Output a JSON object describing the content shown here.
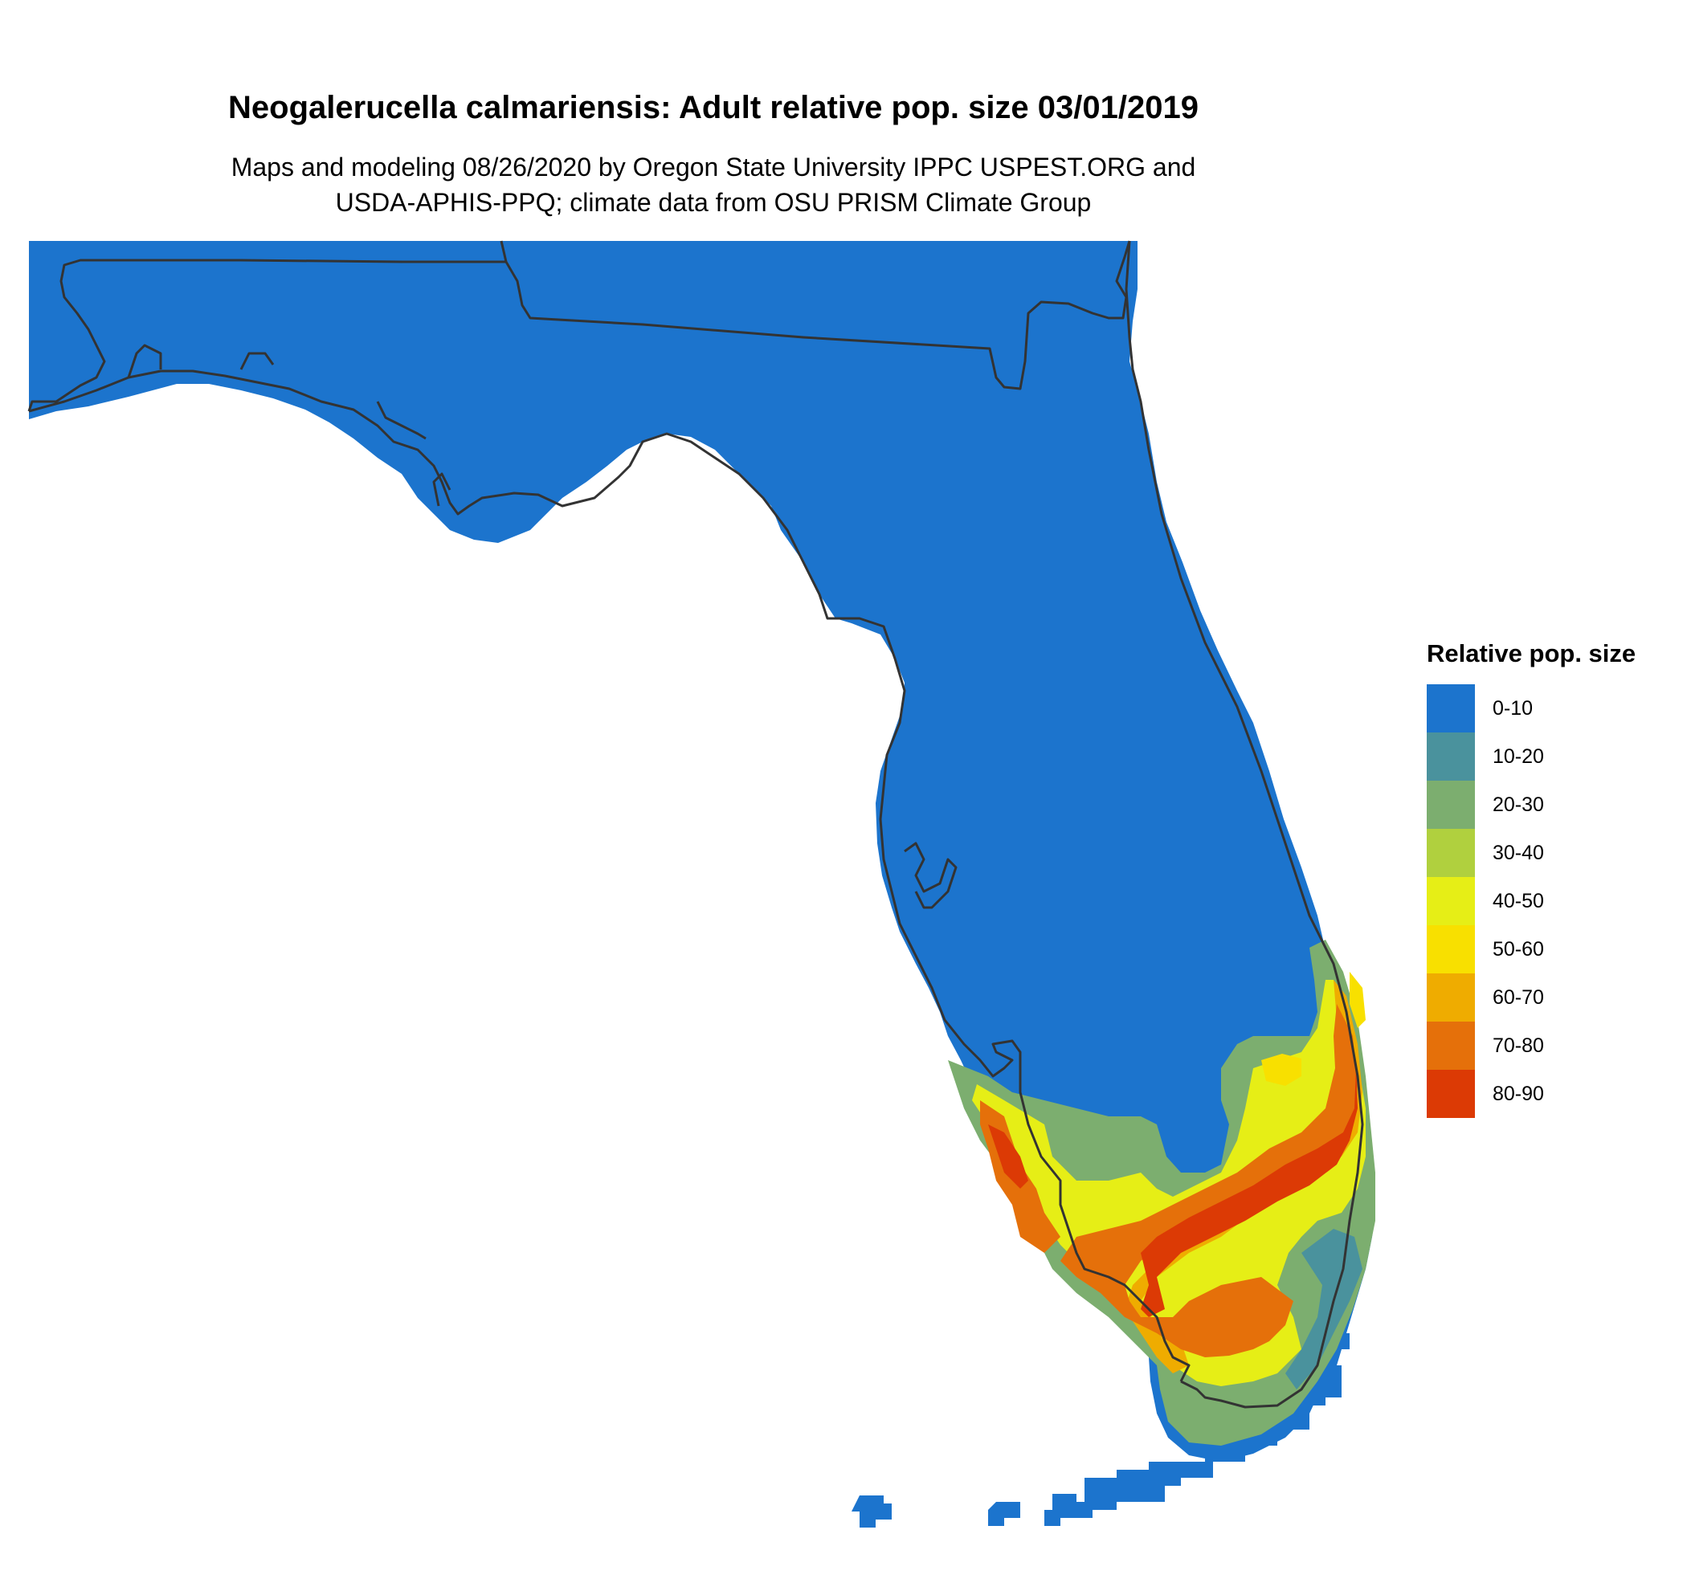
{
  "title": "Neogalerucella calmariensis: Adult relative pop. size 03/01/2019",
  "subtitle_lines": [
    "Maps and modeling 08/26/2020 by Oregon State University IPPC USPEST.ORG and",
    "USDA-APHIS-PPQ; climate data from OSU PRISM Climate Group"
  ],
  "legend": {
    "title": "Relative pop. size",
    "items": [
      {
        "label": "0-10",
        "color": "#1c74cd"
      },
      {
        "label": "10-20",
        "color": "#4a929d"
      },
      {
        "label": "20-30",
        "color": "#7cae6f"
      },
      {
        "label": "30-40",
        "color": "#b0d03e"
      },
      {
        "label": "40-50",
        "color": "#e6ee16"
      },
      {
        "label": "50-60",
        "color": "#f8e000"
      },
      {
        "label": "60-70",
        "color": "#efac00"
      },
      {
        "label": "70-80",
        "color": "#e5700a"
      },
      {
        "label": "80-90",
        "color": "#dc3a05"
      }
    ]
  },
  "map": {
    "region": "Florida",
    "outline_color": "#333333"
  }
}
